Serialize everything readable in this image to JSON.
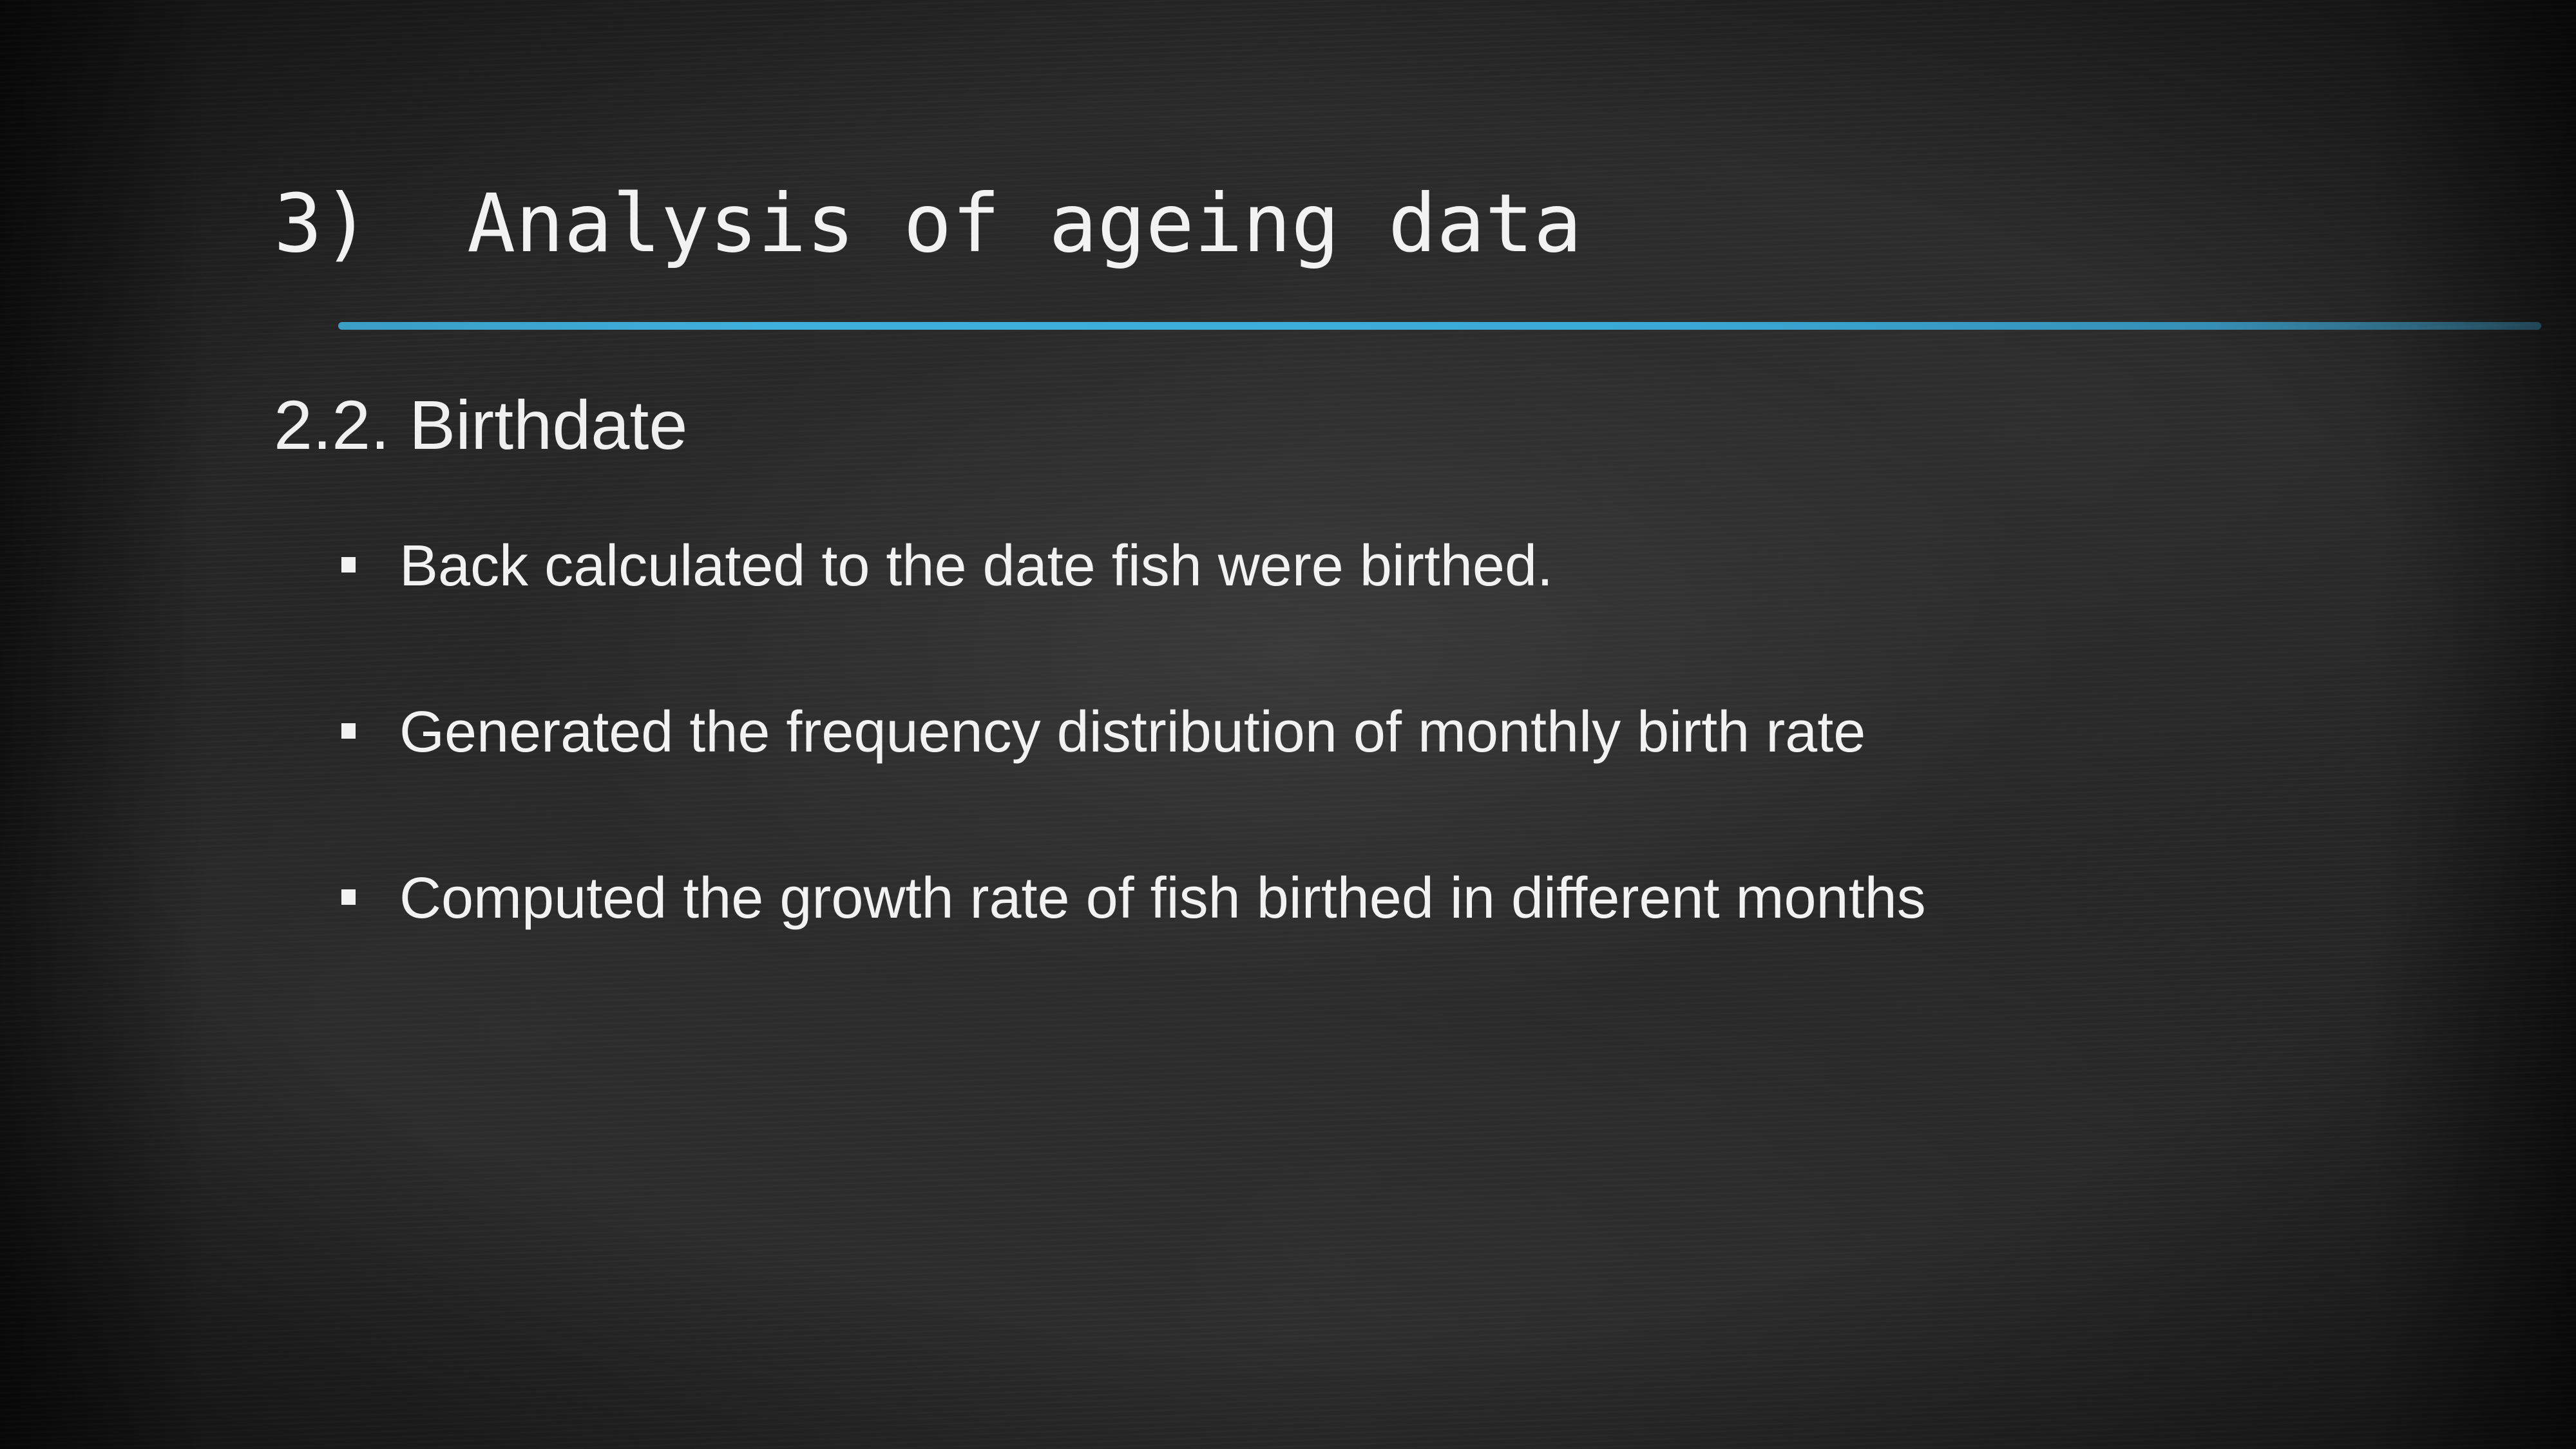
{
  "slide": {
    "title_number": "3)",
    "title_text": "Analysis of ageing data",
    "subtitle": "2.2. Birthdate",
    "bullets": [
      "Back calculated to the date fish were birthed.",
      "Generated the frequency distribution of monthly birth rate",
      "Computed the growth rate of fish birthed in different months"
    ]
  },
  "colors": {
    "background": "#2a2a2a",
    "text": "#f2f2f2",
    "accent_rule": "#3fb0dc"
  },
  "icons": {
    "bullet": "square-bullet-icon"
  }
}
